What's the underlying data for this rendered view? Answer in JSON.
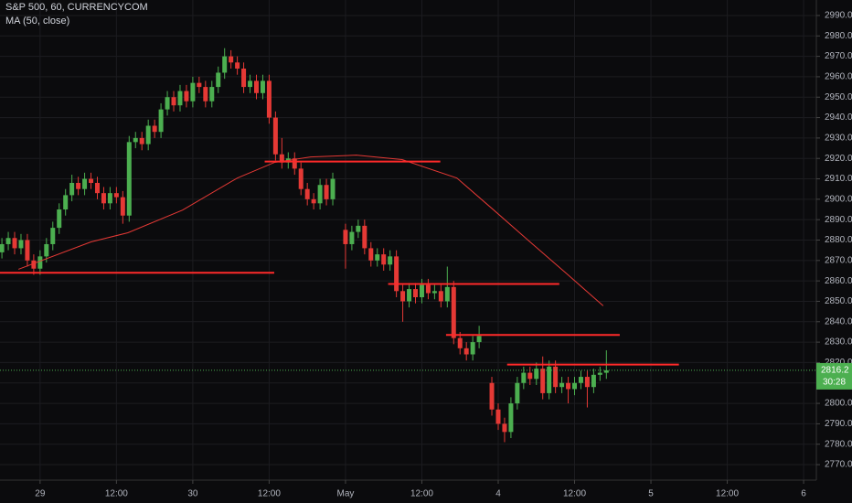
{
  "chart_data": {
    "type": "candlestick",
    "title": "S&P 500, 60, CURRENCYCOM",
    "indicator_label": "MA (50, close)",
    "countdown": "30:28",
    "background": "#0b0b0d",
    "grid": true,
    "up_color": "#4caf50",
    "down_color": "#e53935",
    "xlim": [
      -6.3,
      122
    ],
    "xticks": [
      {
        "value": 0,
        "label": "29"
      },
      {
        "value": 12,
        "label": "12:00"
      },
      {
        "value": 24,
        "label": "30"
      },
      {
        "value": 36,
        "label": "12:00"
      },
      {
        "value": 48,
        "label": "May"
      },
      {
        "value": 60,
        "label": "12:00"
      },
      {
        "value": 72,
        "label": "4"
      },
      {
        "value": 84,
        "label": "12:00"
      },
      {
        "value": 96,
        "label": "5"
      },
      {
        "value": 108,
        "label": "12:00"
      },
      {
        "value": 120,
        "label": "6"
      }
    ],
    "ylim": [
      2762.4,
      2997.6
    ],
    "yticks": [
      {
        "value": 2770,
        "label": "2770.0"
      },
      {
        "value": 2780,
        "label": "2780.0"
      },
      {
        "value": 2790,
        "label": "2790.0"
      },
      {
        "value": 2800,
        "label": "2800.0"
      },
      {
        "value": 2810,
        "label": "2810.0"
      },
      {
        "value": 2820,
        "label": "2820.0"
      },
      {
        "value": 2830,
        "label": "2830.0"
      },
      {
        "value": 2840,
        "label": "2840.0"
      },
      {
        "value": 2850,
        "label": "2850.0"
      },
      {
        "value": 2860,
        "label": "2860.0"
      },
      {
        "value": 2870,
        "label": "2870.0"
      },
      {
        "value": 2880,
        "label": "2880.0"
      },
      {
        "value": 2890,
        "label": "2890.0"
      },
      {
        "value": 2900,
        "label": "2900.0"
      },
      {
        "value": 2910,
        "label": "2910.0"
      },
      {
        "value": 2920,
        "label": "2920.0"
      },
      {
        "value": 2930,
        "label": "2930.0"
      },
      {
        "value": 2940,
        "label": "2940.0"
      },
      {
        "value": 2950,
        "label": "2950.0"
      },
      {
        "value": 2960,
        "label": "2960.0"
      },
      {
        "value": 2970,
        "label": "2970.0"
      },
      {
        "value": 2980,
        "label": "2980.0"
      },
      {
        "value": 2990,
        "label": "2990.0"
      }
    ],
    "candles": {
      "x": [
        -6,
        -5,
        -4,
        -3,
        -2,
        -1,
        0,
        1,
        2,
        3,
        4,
        5,
        6,
        7,
        8,
        9,
        10,
        11,
        12,
        13,
        14,
        15,
        16,
        17,
        18,
        19,
        20,
        21,
        22,
        23,
        24,
        25,
        26,
        27,
        28,
        29,
        30,
        31,
        32,
        33,
        34,
        35,
        36,
        37,
        38,
        39,
        40,
        41,
        42,
        43,
        44,
        45,
        46,
        48,
        49,
        50,
        51,
        52,
        53,
        54,
        55,
        56,
        57,
        58,
        59,
        60,
        61,
        62,
        63,
        64,
        65,
        66,
        67,
        68,
        69,
        71,
        72,
        73,
        74,
        75,
        76,
        77,
        78,
        79,
        80,
        81,
        82,
        83,
        84,
        85,
        86,
        87,
        88,
        89
      ],
      "open": [
        2874,
        2878,
        2881,
        2876,
        2880,
        2870,
        2866,
        2872,
        2878,
        2886,
        2895,
        2902,
        2908,
        2905,
        2910,
        2908,
        2903,
        2898,
        2903,
        2901,
        2892,
        2928,
        2930,
        2927,
        2936,
        2933,
        2944,
        2950,
        2946,
        2953,
        2948,
        2957,
        2955,
        2948,
        2955,
        2962,
        2970,
        2967,
        2964,
        2955,
        2958,
        2952,
        2958,
        2940,
        2922,
        2918,
        2920,
        2915,
        2905,
        2900,
        2898,
        2907,
        2900,
        2885,
        2878,
        2884,
        2887,
        2876,
        2870,
        2873,
        2868,
        2872,
        2855,
        2850,
        2856,
        2852,
        2858,
        2854,
        2855,
        2850,
        2857,
        2832,
        2827,
        2824,
        2830,
        2810,
        2797,
        2790,
        2786,
        2800,
        2810,
        2815,
        2812,
        2817,
        2805,
        2818,
        2808,
        2810,
        2807,
        2810,
        2813,
        2808,
        2814,
        2815
      ],
      "high": [
        2881,
        2884,
        2884,
        2883,
        2883,
        2873,
        2875,
        2881,
        2889,
        2898,
        2905,
        2912,
        2911,
        2913,
        2913,
        2911,
        2906,
        2906,
        2906,
        2904,
        2931,
        2933,
        2933,
        2939,
        2939,
        2947,
        2953,
        2953,
        2956,
        2956,
        2960,
        2960,
        2958,
        2958,
        2965,
        2974,
        2973,
        2970,
        2967,
        2961,
        2961,
        2961,
        2961,
        2943,
        2930,
        2923,
        2923,
        2918,
        2908,
        2903,
        2910,
        2910,
        2913,
        2888,
        2887,
        2890,
        2890,
        2879,
        2876,
        2876,
        2875,
        2875,
        2858,
        2859,
        2859,
        2861,
        2861,
        2858,
        2858,
        2867,
        2860,
        2835,
        2830,
        2833,
        2838,
        2813,
        2800,
        2793,
        2803,
        2813,
        2818,
        2818,
        2820,
        2823,
        2821,
        2821,
        2813,
        2813,
        2813,
        2816,
        2816,
        2817,
        2818,
        2826
      ],
      "low": [
        2871,
        2875,
        2873,
        2873,
        2867,
        2863,
        2863,
        2869,
        2875,
        2883,
        2892,
        2899,
        2902,
        2902,
        2905,
        2900,
        2895,
        2895,
        2898,
        2888,
        2889,
        2925,
        2924,
        2924,
        2930,
        2930,
        2941,
        2943,
        2943,
        2945,
        2945,
        2952,
        2945,
        2945,
        2952,
        2959,
        2964,
        2961,
        2952,
        2952,
        2949,
        2949,
        2937,
        2919,
        2915,
        2915,
        2912,
        2902,
        2897,
        2895,
        2895,
        2897,
        2897,
        2866,
        2875,
        2881,
        2873,
        2867,
        2867,
        2865,
        2865,
        2852,
        2840,
        2847,
        2849,
        2849,
        2851,
        2851,
        2847,
        2847,
        2829,
        2824,
        2821,
        2821,
        2827,
        2794,
        2787,
        2781,
        2783,
        2797,
        2807,
        2809,
        2809,
        2802,
        2802,
        2805,
        2805,
        2800,
        2804,
        2807,
        2798,
        2805,
        2811,
        2812
      ],
      "close": [
        2878,
        2881,
        2876,
        2880,
        2870,
        2866,
        2872,
        2878,
        2886,
        2895,
        2902,
        2908,
        2905,
        2910,
        2908,
        2903,
        2898,
        2903,
        2901,
        2892,
        2928,
        2930,
        2927,
        2936,
        2933,
        2944,
        2950,
        2946,
        2953,
        2948,
        2957,
        2955,
        2948,
        2955,
        2962,
        2970,
        2967,
        2964,
        2955,
        2958,
        2952,
        2958,
        2940,
        2922,
        2918,
        2920,
        2915,
        2905,
        2900,
        2898,
        2907,
        2900,
        2910,
        2878,
        2884,
        2887,
        2876,
        2870,
        2873,
        2868,
        2872,
        2855,
        2850,
        2856,
        2852,
        2858,
        2854,
        2855,
        2850,
        2857,
        2832,
        2827,
        2824,
        2830,
        2833,
        2797,
        2790,
        2786,
        2800,
        2810,
        2815,
        2812,
        2817,
        2805,
        2818,
        2808,
        2810,
        2807,
        2810,
        2813,
        2808,
        2814,
        2815,
        2816.2
      ]
    },
    "ma": {
      "color": "#e53935",
      "x": [
        -3.4,
        8,
        13.8,
        22.4,
        31,
        36.8,
        42.5,
        49.7,
        56.9,
        65.5,
        71.3,
        77,
        82.8,
        88.5
      ],
      "values": [
        2865.7,
        2879.1,
        2883.6,
        2894.7,
        2910.4,
        2918.0,
        2920.7,
        2921.6,
        2919.4,
        2910.4,
        2894.7,
        2879.1,
        2863.4,
        2847.8
      ]
    },
    "drawings": {
      "color": "#ff2a2a",
      "items": [
        {
          "price": 2864,
          "from": -6.3,
          "to": 36.8
        },
        {
          "price": 2918.5,
          "from": 35.3,
          "to": 62.9
        },
        {
          "price": 2858.5,
          "from": 54.7,
          "to": 81.6
        },
        {
          "price": 2833.5,
          "from": 63.8,
          "to": 91.1
        },
        {
          "price": 2819,
          "from": 73.4,
          "to": 100.4
        }
      ]
    }
  }
}
